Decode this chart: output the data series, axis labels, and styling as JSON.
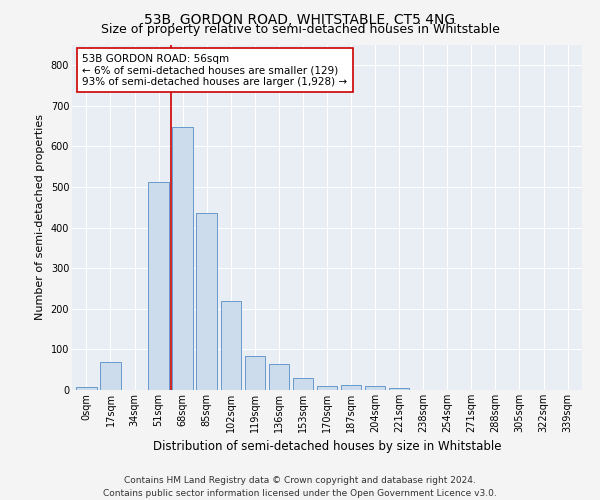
{
  "title1": "53B, GORDON ROAD, WHITSTABLE, CT5 4NG",
  "title2": "Size of property relative to semi-detached houses in Whitstable",
  "xlabel": "Distribution of semi-detached houses by size in Whitstable",
  "ylabel": "Number of semi-detached properties",
  "categories": [
    "0sqm",
    "17sqm",
    "34sqm",
    "51sqm",
    "68sqm",
    "85sqm",
    "102sqm",
    "119sqm",
    "136sqm",
    "153sqm",
    "170sqm",
    "187sqm",
    "204sqm",
    "221sqm",
    "238sqm",
    "254sqm",
    "271sqm",
    "288sqm",
    "305sqm",
    "322sqm",
    "339sqm"
  ],
  "values": [
    8,
    68,
    0,
    512,
    648,
    435,
    220,
    84,
    63,
    30,
    10,
    12,
    10,
    5,
    0,
    0,
    0,
    0,
    0,
    0,
    0
  ],
  "bar_color": "#ccdcec",
  "bar_edge_color": "#6699cc",
  "property_line_color": "#cc0000",
  "annotation_text": "53B GORDON ROAD: 56sqm\n← 6% of semi-detached houses are smaller (129)\n93% of semi-detached houses are larger (1,928) →",
  "annotation_box_facecolor": "#ffffff",
  "annotation_box_edgecolor": "#cc0000",
  "ylim": [
    0,
    850
  ],
  "yticks": [
    0,
    100,
    200,
    300,
    400,
    500,
    600,
    700,
    800
  ],
  "plot_bg_color": "#e8eef4",
  "fig_bg_color": "#f4f4f4",
  "grid_color": "#ffffff",
  "footer1": "Contains HM Land Registry data © Crown copyright and database right 2024.",
  "footer2": "Contains public sector information licensed under the Open Government Licence v3.0.",
  "title1_fontsize": 10,
  "title2_fontsize": 9,
  "xlabel_fontsize": 8.5,
  "ylabel_fontsize": 8,
  "tick_fontsize": 7,
  "annotation_fontsize": 7.5,
  "footer_fontsize": 6.5,
  "property_line_bar_index": 3.5
}
